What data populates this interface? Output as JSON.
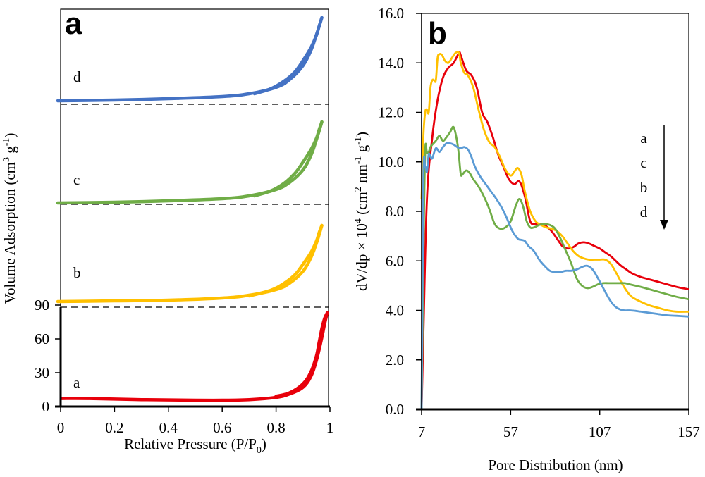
{
  "chart_data": [
    {
      "panel": "a",
      "type": "line",
      "xlabel": "Relative Pressure (P/P",
      "xlabel_sub": "0",
      "xlabel_end": ")",
      "ylabel": "Volume  Adsorption (cm",
      "ylabel_sup": "3",
      "ylabel_mid": " g",
      "ylabel_sup2": "-1",
      "ylabel_end": ")",
      "xlim": [
        0,
        1
      ],
      "x_ticks": [
        "0",
        "0.2",
        "0.4",
        "0.6",
        "0.8",
        "1"
      ],
      "x_tick_values": [
        0,
        0.2,
        0.4,
        0.6,
        0.8,
        1
      ],
      "y_ticks": [
        "0",
        "30",
        "60",
        "90"
      ],
      "y_tick_values": [
        0,
        30,
        60,
        90
      ],
      "ylim_bottom_panel": [
        0,
        90
      ],
      "stacked_offsets_note": "curves b, c, d are vertically offset in separate stacked bands separated by dashed lines",
      "series": [
        {
          "name": "a",
          "color": "#e8000b",
          "band": 0,
          "adsorption": {
            "x": [
              0,
              0.1,
              0.3,
              0.5,
              0.6,
              0.7,
              0.8,
              0.85,
              0.9,
              0.93,
              0.95,
              0.97,
              0.98,
              0.99
            ],
            "y": [
              4,
              4,
              3,
              2.5,
              2.5,
              3,
              5,
              8,
              14,
              24,
              38,
              58,
              70,
              80
            ]
          },
          "desorption": {
            "x": [
              0.99,
              0.98,
              0.97,
              0.96,
              0.95,
              0.93,
              0.9,
              0.85,
              0.8
            ],
            "y": [
              80,
              75,
              66,
              54,
              42,
              28,
              17,
              9,
              6
            ]
          }
        },
        {
          "name": "b",
          "color": "#ffc000",
          "band": 1,
          "adsorption": {
            "x": [
              0,
              0.2,
              0.4,
              0.6,
              0.7,
              0.8,
              0.85,
              0.9,
              0.93,
              0.95,
              0.97
            ],
            "y": [
              2,
              3,
              4,
              7,
              11,
              19,
              28,
              45,
              65,
              85,
              110
            ]
          },
          "desorption": {
            "x": [
              0.97,
              0.96,
              0.95,
              0.93,
              0.9,
              0.87,
              0.83,
              0.78,
              0.7
            ],
            "y": [
              110,
              100,
              88,
              72,
              55,
              40,
              28,
              18,
              10
            ]
          }
        },
        {
          "name": "c",
          "color": "#70ad47",
          "band": 2,
          "adsorption": {
            "x": [
              0,
              0.2,
              0.4,
              0.6,
              0.7,
              0.8,
              0.85,
              0.9,
              0.93,
              0.95,
              0.97
            ],
            "y": [
              0,
              1,
              3,
              6,
              10,
              19,
              29,
              47,
              68,
              90,
              115
            ]
          },
          "desorption": {
            "x": [
              0.97,
              0.96,
              0.95,
              0.93,
              0.9,
              0.87,
              0.83,
              0.78,
              0.72
            ],
            "y": [
              115,
              104,
              92,
              76,
              58,
              42,
              28,
              17,
              10
            ]
          }
        },
        {
          "name": "d",
          "color": "#4472c4",
          "band": 3,
          "adsorption": {
            "x": [
              0,
              0.2,
              0.4,
              0.6,
              0.7,
              0.8,
              0.85,
              0.9,
              0.93,
              0.95,
              0.97
            ],
            "y": [
              0,
              1,
              3,
              6,
              10,
              19,
              30,
              50,
              72,
              94,
              118
            ]
          },
          "desorption": {
            "x": [
              0.97,
              0.96,
              0.95,
              0.93,
              0.9,
              0.87,
              0.83,
              0.78,
              0.72
            ],
            "y": [
              118,
              106,
              93,
              76,
              57,
              41,
              28,
              17,
              10
            ]
          }
        }
      ],
      "curve_labels": [
        "a",
        "b",
        "c",
        "d"
      ],
      "panel_label": "a"
    },
    {
      "panel": "b",
      "type": "line",
      "xlabel": "Pore Distribution (nm)",
      "ylabel": "dV/dp × 10",
      "ylabel_sup": "4",
      "ylabel_mid": " (cm",
      "ylabel_sup2": "2",
      "ylabel_mid2": " nm",
      "ylabel_sup3": "-1",
      "ylabel_mid3": " g",
      "ylabel_sup4": "-1",
      "ylabel_end": ")",
      "xlim": [
        7,
        157
      ],
      "ylim": [
        0,
        16
      ],
      "x_ticks": [
        "7",
        "57",
        "107",
        "157"
      ],
      "x_tick_values": [
        7,
        57,
        107,
        157
      ],
      "y_ticks": [
        "0.0",
        "2.0",
        "4.0",
        "6.0",
        "8.0",
        "10.0",
        "12.0",
        "14.0",
        "16.0"
      ],
      "y_tick_values": [
        0,
        2,
        4,
        6,
        8,
        10,
        12,
        14,
        16
      ],
      "legend_order": [
        "a",
        "c",
        "b",
        "d"
      ],
      "legend_note": "arrow pointing down indicating order a, c, b, d",
      "panel_label": "b",
      "series": [
        {
          "name": "a",
          "color": "#e8000b",
          "x": [
            7,
            8,
            10,
            13,
            16,
            19,
            22,
            25,
            28,
            29,
            32,
            35,
            38,
            41,
            44,
            47,
            50,
            53,
            56,
            59,
            62,
            65,
            68,
            71,
            74,
            77,
            80,
            83,
            86,
            89,
            92,
            95,
            98,
            101,
            104,
            107,
            110,
            113,
            116,
            119,
            122,
            125,
            130,
            135,
            140,
            145,
            150,
            157
          ],
          "y": [
            0,
            3,
            8.5,
            11,
            12.5,
            13.4,
            13.8,
            14.0,
            14.4,
            14.3,
            13.7,
            13.5,
            13.0,
            12.0,
            11.6,
            11.0,
            10.3,
            9.8,
            9.3,
            9.1,
            9.2,
            8.6,
            7.6,
            7.5,
            7.5,
            7.4,
            7.2,
            6.9,
            6.6,
            6.5,
            6.55,
            6.7,
            6.75,
            6.7,
            6.6,
            6.5,
            6.35,
            6.2,
            6.0,
            5.8,
            5.65,
            5.5,
            5.35,
            5.25,
            5.15,
            5.05,
            4.95,
            4.85
          ]
        },
        {
          "name": "b",
          "color": "#ffc000",
          "x": [
            7,
            8,
            9,
            10,
            11,
            12,
            13,
            14,
            15,
            16,
            17,
            18,
            19,
            20,
            22,
            24,
            26,
            28,
            29,
            31,
            33,
            36,
            39,
            42,
            45,
            48,
            51,
            54,
            57,
            59,
            61,
            63,
            65,
            68,
            71,
            74,
            77,
            80,
            83,
            86,
            89,
            92,
            95,
            98,
            101,
            104,
            107,
            110,
            113,
            116,
            119,
            122,
            125,
            130,
            135,
            140,
            145,
            150,
            157
          ],
          "y": [
            8.5,
            11,
            12.0,
            12.1,
            12.0,
            13.0,
            13.3,
            13.3,
            13.3,
            14.2,
            14.35,
            14.35,
            14.25,
            14.1,
            14.0,
            14.2,
            14.4,
            14.4,
            14.0,
            13.6,
            13.5,
            13.0,
            12.1,
            11.3,
            10.8,
            10.6,
            10.2,
            9.7,
            9.45,
            9.6,
            9.75,
            9.5,
            8.8,
            8.0,
            7.6,
            7.45,
            7.35,
            7.3,
            7.2,
            7.0,
            6.7,
            6.4,
            6.2,
            6.1,
            6.05,
            6.05,
            6.05,
            6.05,
            5.9,
            5.55,
            5.15,
            4.8,
            4.55,
            4.35,
            4.2,
            4.1,
            4.0,
            3.95,
            3.95
          ]
        },
        {
          "name": "c",
          "color": "#70ad47",
          "x": [
            7,
            8,
            9,
            10,
            11,
            12,
            13,
            15,
            17,
            19,
            21,
            23,
            25,
            27,
            28,
            29,
            30,
            32,
            34,
            36,
            39,
            42,
            45,
            48,
            51,
            54,
            57,
            60,
            62,
            64,
            66,
            68,
            70,
            73,
            76,
            79,
            82,
            85,
            88,
            91,
            94,
            97,
            100,
            103,
            106,
            109,
            112,
            115,
            118,
            121,
            124,
            127,
            130,
            135,
            140,
            145,
            150,
            157
          ],
          "y": [
            0,
            6,
            10.4,
            10.35,
            10.4,
            10.6,
            10.7,
            10.85,
            11.05,
            10.85,
            11.0,
            11.2,
            11.4,
            10.8,
            10.2,
            9.5,
            9.5,
            9.65,
            9.55,
            9.3,
            9.0,
            8.6,
            8.1,
            7.5,
            7.3,
            7.35,
            7.6,
            8.25,
            8.5,
            8.2,
            7.6,
            7.35,
            7.35,
            7.45,
            7.5,
            7.45,
            7.3,
            6.9,
            6.4,
            5.9,
            5.3,
            5.0,
            4.9,
            4.95,
            5.05,
            5.1,
            5.1,
            5.1,
            5.1,
            5.1,
            5.05,
            5.0,
            4.95,
            4.85,
            4.75,
            4.65,
            4.55,
            4.45
          ]
        },
        {
          "name": "d",
          "color": "#5b9bd5",
          "x": [
            7,
            8,
            9,
            10,
            11,
            12,
            13,
            15,
            17,
            19,
            21,
            23,
            25,
            27,
            29,
            31,
            33,
            35,
            37,
            40,
            43,
            46,
            49,
            52,
            55,
            58,
            61,
            63,
            65,
            67,
            70,
            73,
            76,
            79,
            82,
            85,
            88,
            91,
            94,
            97,
            100,
            103,
            106,
            109,
            112,
            115,
            118,
            121,
            124,
            127,
            130,
            135,
            140,
            145,
            150,
            157
          ],
          "y": [
            0,
            9.3,
            9.8,
            9.6,
            10.3,
            10.2,
            10.15,
            10.55,
            10.4,
            10.6,
            10.75,
            10.75,
            10.7,
            10.6,
            10.55,
            10.6,
            10.5,
            10.2,
            9.8,
            9.4,
            9.1,
            8.8,
            8.5,
            8.15,
            7.7,
            7.2,
            6.9,
            6.85,
            6.8,
            6.6,
            6.4,
            6.05,
            5.8,
            5.6,
            5.55,
            5.55,
            5.6,
            5.6,
            5.65,
            5.75,
            5.8,
            5.65,
            5.3,
            4.9,
            4.5,
            4.2,
            4.05,
            4.0,
            4.0,
            3.98,
            3.95,
            3.9,
            3.85,
            3.8,
            3.78,
            3.75
          ]
        }
      ]
    }
  ]
}
